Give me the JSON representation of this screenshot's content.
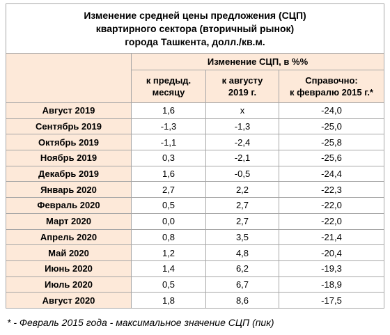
{
  "title": [
    "Изменение средней цены предложения (СЦП)",
    "квартирного сектора (вторичный рынок)",
    "города Ташкента, долл./кв.м."
  ],
  "table": {
    "group_header": "Изменение СЦП, в %%",
    "columns": [
      [
        "к предыд.",
        "месяцу"
      ],
      [
        "к августу",
        "2019 г."
      ],
      [
        "Справочно:",
        "к февралю 2015 г.*"
      ]
    ],
    "rows": [
      [
        "Август 2019",
        "1,6",
        "х",
        "-24,0"
      ],
      [
        "Сентябрь 2019",
        "-1,3",
        "-1,3",
        "-25,0"
      ],
      [
        "Октябрь 2019",
        "-1,1",
        "-2,4",
        "-25,8"
      ],
      [
        "Ноябрь 2019",
        "0,3",
        "-2,1",
        "-25,6"
      ],
      [
        "Декабрь 2019",
        "1,6",
        "-0,5",
        "-24,4"
      ],
      [
        "Январь 2020",
        "2,7",
        "2,2",
        "-22,3"
      ],
      [
        "Февраль 2020",
        "0,5",
        "2,7",
        "-22,0"
      ],
      [
        "Март 2020",
        "0,0",
        "2,7",
        "-22,0"
      ],
      [
        "Апрель 2020",
        "0,8",
        "3,5",
        "-21,4"
      ],
      [
        "Май 2020",
        "1,2",
        "4,8",
        "-20,4"
      ],
      [
        "Июнь 2020",
        "1,4",
        "6,2",
        "-19,3"
      ],
      [
        "Июль 2020",
        "0,5",
        "6,7",
        "-18,9"
      ],
      [
        "Август 2020",
        "1,8",
        "8,6",
        "-17,5"
      ]
    ]
  },
  "footnote": "* - Февраль 2015 года - максимальное значение СЦП (пик)"
}
